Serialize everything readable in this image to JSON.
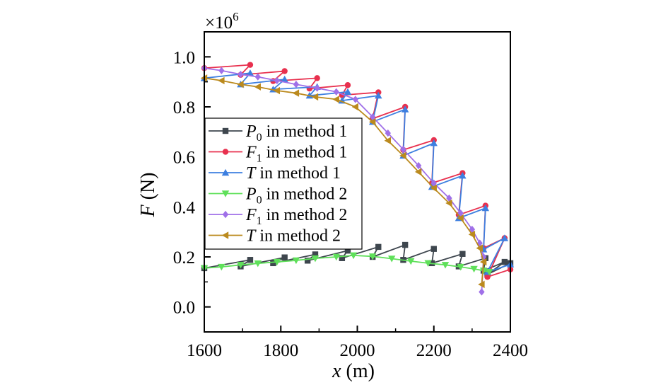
{
  "chart_data": {
    "type": "line",
    "title": "",
    "xlabel": {
      "var": "x",
      "unit": " (m)"
    },
    "ylabel": {
      "var": "F",
      "unit": " (N)"
    },
    "y_multiplier": {
      "base": "×10",
      "exp": "6"
    },
    "xlim": [
      1600,
      2400
    ],
    "ylim": [
      -0.1,
      1.1
    ],
    "xticks": [
      1600,
      1800,
      2000,
      2200,
      2400
    ],
    "yticks": [
      0.0,
      0.2,
      0.4,
      0.6,
      0.8,
      1.0
    ],
    "yticklabels": [
      "0.0",
      "0.2",
      "0.4",
      "0.6",
      "0.8",
      "1.0"
    ],
    "grid": false,
    "legend_position": "left-middle",
    "series": [
      {
        "name": {
          "var": "P",
          "sub": "0",
          "rest": " in method 1"
        },
        "color": "#3e464e",
        "marker": "square",
        "points": [
          [
            1600,
            0.155
          ],
          [
            1720,
            0.188
          ],
          [
            1695,
            0.162
          ],
          [
            1810,
            0.198
          ],
          [
            1780,
            0.175
          ],
          [
            1890,
            0.21
          ],
          [
            1870,
            0.185
          ],
          [
            1975,
            0.225
          ],
          [
            1960,
            0.195
          ],
          [
            2055,
            0.24
          ],
          [
            2040,
            0.2
          ],
          [
            2125,
            0.248
          ],
          [
            2120,
            0.188
          ],
          [
            2200,
            0.232
          ],
          [
            2195,
            0.175
          ],
          [
            2275,
            0.212
          ],
          [
            2265,
            0.162
          ],
          [
            2335,
            0.195
          ],
          [
            2330,
            0.145
          ],
          [
            2385,
            0.18
          ],
          [
            2340,
            0.13
          ],
          [
            2400,
            0.175
          ]
        ]
      },
      {
        "name": {
          "var": "F",
          "sub": "1",
          "rest": " in method 1"
        },
        "color": "#e8304e",
        "marker": "circle",
        "points": [
          [
            1600,
            0.955
          ],
          [
            1720,
            0.968
          ],
          [
            1695,
            0.928
          ],
          [
            1810,
            0.943
          ],
          [
            1780,
            0.903
          ],
          [
            1895,
            0.915
          ],
          [
            1875,
            0.873
          ],
          [
            1975,
            0.887
          ],
          [
            1960,
            0.847
          ],
          [
            2055,
            0.858
          ],
          [
            2040,
            0.753
          ],
          [
            2125,
            0.8
          ],
          [
            2120,
            0.628
          ],
          [
            2200,
            0.667
          ],
          [
            2195,
            0.495
          ],
          [
            2275,
            0.535
          ],
          [
            2265,
            0.368
          ],
          [
            2335,
            0.405
          ],
          [
            2330,
            0.235
          ],
          [
            2385,
            0.275
          ],
          [
            2340,
            0.12
          ],
          [
            2400,
            0.15
          ]
        ]
      },
      {
        "name": {
          "var": "T",
          "sub": "",
          "rest": " in method 1"
        },
        "color": "#3d7fe0",
        "marker": "triangle-up",
        "points": [
          [
            1600,
            0.915
          ],
          [
            1720,
            0.935
          ],
          [
            1695,
            0.89
          ],
          [
            1810,
            0.91
          ],
          [
            1780,
            0.87
          ],
          [
            1895,
            0.88
          ],
          [
            1875,
            0.845
          ],
          [
            1975,
            0.86
          ],
          [
            1960,
            0.825
          ],
          [
            2055,
            0.845
          ],
          [
            2040,
            0.74
          ],
          [
            2125,
            0.79
          ],
          [
            2120,
            0.605
          ],
          [
            2200,
            0.655
          ],
          [
            2195,
            0.48
          ],
          [
            2275,
            0.525
          ],
          [
            2265,
            0.355
          ],
          [
            2335,
            0.395
          ],
          [
            2330,
            0.23
          ],
          [
            2385,
            0.275
          ],
          [
            2340,
            0.14
          ],
          [
            2400,
            0.17
          ]
        ]
      },
      {
        "name": {
          "var": "P",
          "sub": "0",
          "rest": " in method 2"
        },
        "color": "#5fe05a",
        "marker": "triangle-down",
        "points": [
          [
            1600,
            0.155
          ],
          [
            1645,
            0.16
          ],
          [
            1695,
            0.168
          ],
          [
            1740,
            0.174
          ],
          [
            1790,
            0.18
          ],
          [
            1840,
            0.186
          ],
          [
            1890,
            0.194
          ],
          [
            1945,
            0.2
          ],
          [
            1990,
            0.206
          ],
          [
            2040,
            0.202
          ],
          [
            2090,
            0.193
          ],
          [
            2140,
            0.183
          ],
          [
            2185,
            0.175
          ],
          [
            2230,
            0.168
          ],
          [
            2270,
            0.16
          ],
          [
            2305,
            0.152
          ],
          [
            2330,
            0.145
          ],
          [
            2345,
            0.14
          ]
        ]
      },
      {
        "name": {
          "var": "F",
          "sub": "1",
          "rest": " in method 2"
        },
        "color": "#a070e8",
        "marker": "diamond",
        "points": [
          [
            1600,
            0.955
          ],
          [
            1645,
            0.945
          ],
          [
            1695,
            0.93
          ],
          [
            1740,
            0.92
          ],
          [
            1790,
            0.905
          ],
          [
            1840,
            0.89
          ],
          [
            1895,
            0.875
          ],
          [
            1945,
            0.86
          ],
          [
            1995,
            0.83
          ],
          [
            2040,
            0.76
          ],
          [
            2080,
            0.695
          ],
          [
            2120,
            0.63
          ],
          [
            2160,
            0.565
          ],
          [
            2200,
            0.495
          ],
          [
            2240,
            0.435
          ],
          [
            2270,
            0.375
          ],
          [
            2300,
            0.31
          ],
          [
            2320,
            0.255
          ],
          [
            2330,
            0.2
          ],
          [
            2325,
            0.06
          ]
        ]
      },
      {
        "name": {
          "var": "T",
          "sub": "",
          "rest": " in method 2"
        },
        "color": "#bb8a1e",
        "marker": "triangle-left",
        "points": [
          [
            1600,
            0.915
          ],
          [
            1645,
            0.905
          ],
          [
            1695,
            0.89
          ],
          [
            1740,
            0.88
          ],
          [
            1790,
            0.865
          ],
          [
            1840,
            0.855
          ],
          [
            1890,
            0.84
          ],
          [
            1945,
            0.83
          ],
          [
            1995,
            0.8
          ],
          [
            2040,
            0.74
          ],
          [
            2080,
            0.665
          ],
          [
            2120,
            0.605
          ],
          [
            2160,
            0.54
          ],
          [
            2200,
            0.475
          ],
          [
            2240,
            0.415
          ],
          [
            2270,
            0.355
          ],
          [
            2300,
            0.29
          ],
          [
            2320,
            0.235
          ],
          [
            2330,
            0.18
          ],
          [
            2325,
            0.09
          ]
        ]
      }
    ]
  }
}
